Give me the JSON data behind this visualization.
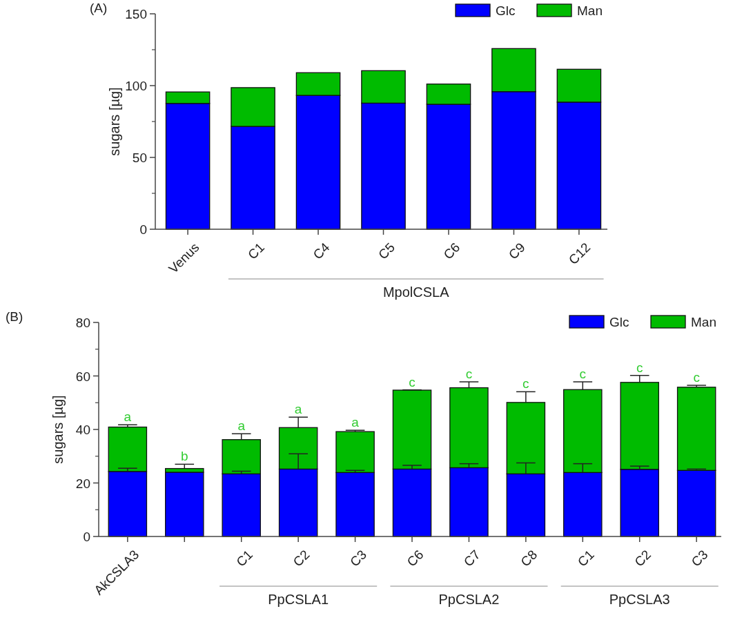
{
  "chart_data": [
    {
      "type": "bar",
      "title": "(A)",
      "ylabel": "sugars [µg]",
      "stacked": true,
      "legend": "top right",
      "categories": [
        "Venus",
        "C1",
        "C4",
        "C5",
        "C6",
        "C9",
        "C12"
      ],
      "series": [
        {
          "name": "Glc",
          "color": "#0000ff",
          "values": [
            87.6,
            71.6,
            93.2,
            87.8,
            87,
            95.8,
            88.5
          ]
        },
        {
          "name": "Man",
          "color": "#00bb00",
          "values": [
            8,
            27,
            15.8,
            22.6,
            14.1,
            30,
            22.9
          ]
        }
      ],
      "ylim": [
        0,
        150
      ],
      "yticks": [
        0,
        50,
        100,
        150
      ],
      "annotations": [
        "MpolCSLA"
      ]
    },
    {
      "type": "bar",
      "title": "(B)",
      "ylabel": "sugars [µg]",
      "stacked": true,
      "legend": "top right",
      "categories": [
        "AkCSLA3",
        null,
        "C1",
        "C2",
        "C3",
        "C6",
        "C7",
        "C8",
        "C1",
        "C2",
        "C3"
      ],
      "series": [
        {
          "name": "Glc",
          "color": "#0000ff",
          "values": [
            24.3,
            24,
            23.4,
            25.2,
            23.9,
            25.2,
            25.7,
            23.4,
            23.9,
            25.1,
            24.7
          ],
          "errors": [
            1.2,
            null,
            1.0,
            5.7,
            0.8,
            1.4,
            1.5,
            4.1,
            3.3,
            1.2,
            0.5
          ]
        },
        {
          "name": "Man",
          "color": "#00bb00",
          "values": [
            16.6,
            1.4,
            12.8,
            15.5,
            15.3,
            29.5,
            29.9,
            26.7,
            31.0,
            32.5,
            31.1
          ],
          "errors": [
            0.85,
            1.6,
            2.2,
            3.9,
            0.5,
            0.1,
            2.2,
            4.0,
            2.9,
            2.6,
            0.7
          ],
          "value_labels": [
            "a",
            "b",
            "a",
            "a",
            "a",
            "c",
            "c",
            "c",
            "c",
            "c",
            "c"
          ]
        }
      ],
      "ylim": [
        0,
        80
      ],
      "yticks": [
        0,
        20,
        40,
        60,
        80
      ],
      "annotations": [
        "PpCSLA1",
        "PpCSLA2",
        "PpCSLA3"
      ]
    }
  ]
}
